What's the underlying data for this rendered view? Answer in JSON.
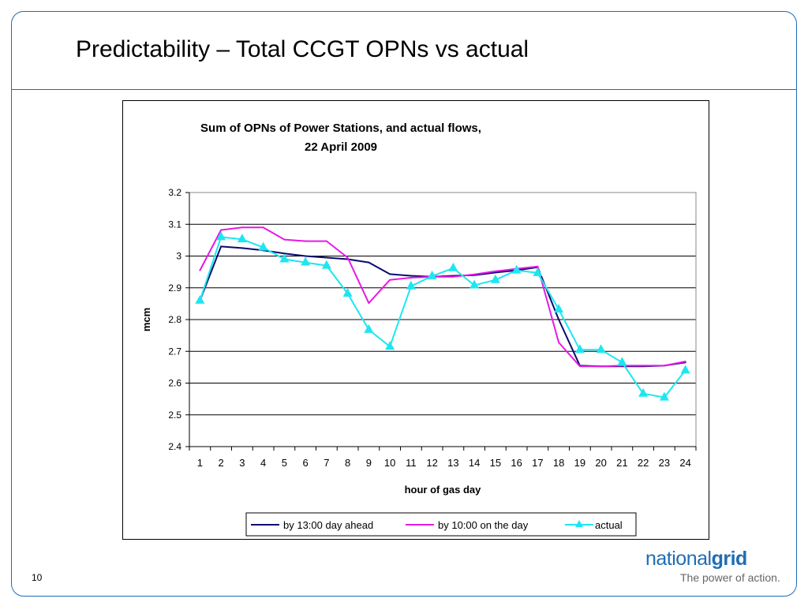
{
  "slide": {
    "title": "Predictability – Total CCGT OPNs vs actual",
    "page_number": "10",
    "logo_light": "national",
    "logo_bold": "grid",
    "tagline": "The power of action."
  },
  "colors": {
    "frame": "#1f6db5",
    "series_day_ahead": "#0a0a6e",
    "series_on_the_day": "#e619e6",
    "series_actual": "#1ee6f0"
  },
  "chart_data": {
    "type": "line",
    "title": "Sum of OPNs of Power Stations, and actual flows,",
    "subtitle": "22 April 2009",
    "xlabel": "hour of gas day",
    "ylabel": "mcm",
    "ylim": [
      2.4,
      3.2
    ],
    "yticks": [
      "3.2",
      "3.1",
      "3",
      "2.9",
      "2.8",
      "2.7",
      "2.6",
      "2.5",
      "2.4"
    ],
    "categories": [
      "1",
      "2",
      "3",
      "4",
      "5",
      "6",
      "7",
      "8",
      "9",
      "10",
      "11",
      "12",
      "13",
      "14",
      "15",
      "16",
      "17",
      "18",
      "19",
      "20",
      "21",
      "22",
      "23",
      "24"
    ],
    "grid": "horizontal",
    "legend_position": "bottom",
    "series": [
      {
        "name": "by 13:00 day ahead",
        "marker": "none",
        "values": [
          2.86,
          3.03,
          3.025,
          3.018,
          3.008,
          3.0,
          2.995,
          2.99,
          2.98,
          2.943,
          2.938,
          2.935,
          2.938,
          2.94,
          2.948,
          2.955,
          2.965,
          2.8,
          2.655,
          2.653,
          2.653,
          2.653,
          2.655,
          2.665
        ]
      },
      {
        "name": "by 10:00 on the day",
        "marker": "none",
        "values": [
          2.955,
          3.082,
          3.09,
          3.09,
          3.052,
          3.047,
          3.047,
          2.995,
          2.852,
          2.925,
          2.932,
          2.935,
          2.935,
          2.942,
          2.952,
          2.96,
          2.967,
          2.728,
          2.653,
          2.653,
          2.655,
          2.655,
          2.655,
          2.668
        ]
      },
      {
        "name": "actual",
        "marker": "triangle",
        "values": [
          2.86,
          3.06,
          3.053,
          3.027,
          2.99,
          2.98,
          2.97,
          2.882,
          2.768,
          2.715,
          2.905,
          2.937,
          2.962,
          2.908,
          2.925,
          2.955,
          2.947,
          2.832,
          2.705,
          2.705,
          2.665,
          2.567,
          2.555,
          2.64
        ]
      }
    ]
  }
}
